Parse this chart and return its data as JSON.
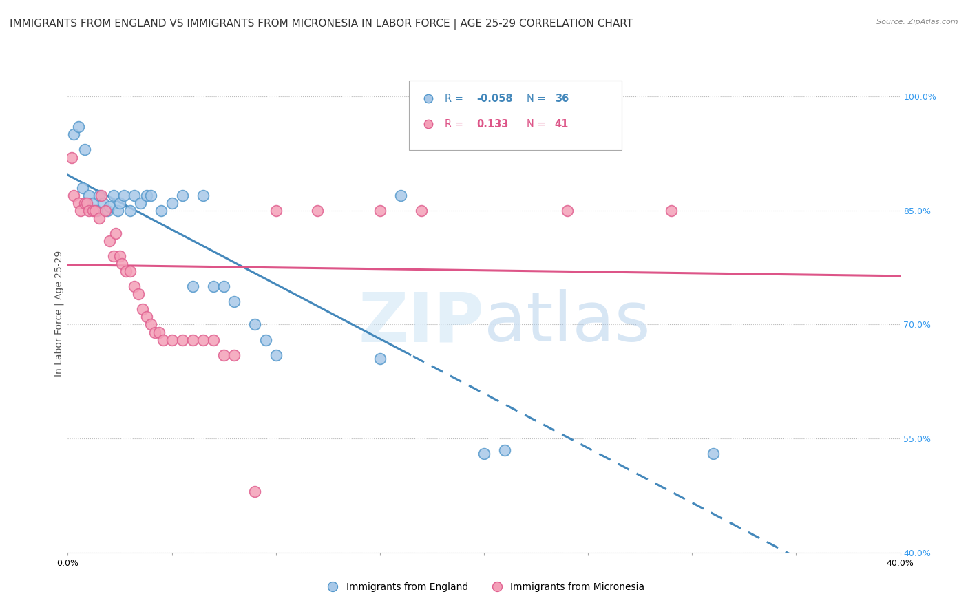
{
  "title": "IMMIGRANTS FROM ENGLAND VS IMMIGRANTS FROM MICRONESIA IN LABOR FORCE | AGE 25-29 CORRELATION CHART",
  "source": "Source: ZipAtlas.com",
  "ylabel": "In Labor Force | Age 25-29",
  "xlim": [
    0.0,
    0.4
  ],
  "ylim": [
    0.4,
    1.03
  ],
  "xticks": [
    0.0,
    0.05,
    0.1,
    0.15,
    0.2,
    0.25,
    0.3,
    0.35,
    0.4
  ],
  "xticklabels": [
    "0.0%",
    "",
    "",
    "",
    "",
    "",
    "",
    "",
    "40.0%"
  ],
  "yticks_right": [
    0.4,
    0.55,
    0.7,
    0.85,
    1.0
  ],
  "yticklabels_right": [
    "40.0%",
    "55.0%",
    "70.0%",
    "85.0%",
    "100.0%"
  ],
  "england_x": [
    0.003,
    0.005,
    0.007,
    0.008,
    0.01,
    0.012,
    0.014,
    0.015,
    0.017,
    0.019,
    0.02,
    0.022,
    0.024,
    0.025,
    0.027,
    0.03,
    0.032,
    0.035,
    0.038,
    0.04,
    0.045,
    0.05,
    0.055,
    0.06,
    0.065,
    0.07,
    0.075,
    0.08,
    0.09,
    0.095,
    0.1,
    0.15,
    0.16,
    0.2,
    0.21,
    0.31
  ],
  "england_y": [
    0.95,
    0.96,
    0.88,
    0.93,
    0.87,
    0.86,
    0.85,
    0.87,
    0.86,
    0.85,
    0.855,
    0.87,
    0.85,
    0.86,
    0.87,
    0.85,
    0.87,
    0.86,
    0.87,
    0.87,
    0.85,
    0.86,
    0.87,
    0.75,
    0.87,
    0.75,
    0.75,
    0.73,
    0.7,
    0.68,
    0.66,
    0.655,
    0.87,
    0.53,
    0.535,
    0.53
  ],
  "micronesia_x": [
    0.002,
    0.003,
    0.005,
    0.006,
    0.008,
    0.009,
    0.01,
    0.012,
    0.013,
    0.015,
    0.016,
    0.018,
    0.02,
    0.022,
    0.023,
    0.025,
    0.026,
    0.028,
    0.03,
    0.032,
    0.034,
    0.036,
    0.038,
    0.04,
    0.042,
    0.044,
    0.046,
    0.05,
    0.055,
    0.06,
    0.065,
    0.07,
    0.075,
    0.08,
    0.09,
    0.1,
    0.12,
    0.15,
    0.17,
    0.24,
    0.29
  ],
  "micronesia_y": [
    0.92,
    0.87,
    0.86,
    0.85,
    0.86,
    0.86,
    0.85,
    0.85,
    0.85,
    0.84,
    0.87,
    0.85,
    0.81,
    0.79,
    0.82,
    0.79,
    0.78,
    0.77,
    0.77,
    0.75,
    0.74,
    0.72,
    0.71,
    0.7,
    0.69,
    0.69,
    0.68,
    0.68,
    0.68,
    0.68,
    0.68,
    0.68,
    0.66,
    0.66,
    0.48,
    0.85,
    0.85,
    0.85,
    0.85,
    0.85,
    0.85
  ],
  "england_R": -0.058,
  "england_N": 36,
  "micronesia_R": 0.133,
  "micronesia_N": 41,
  "england_color": "#a8c8e8",
  "micronesia_color": "#f4a0b8",
  "england_edge_color": "#5599cc",
  "micronesia_edge_color": "#e06090",
  "england_line_color": "#4488bb",
  "micronesia_line_color": "#dd5588",
  "trend_split": 0.165,
  "background_color": "#ffffff",
  "watermark_zip": "ZIP",
  "watermark_atlas": "atlas",
  "title_fontsize": 11,
  "axis_label_fontsize": 10,
  "tick_fontsize": 9
}
